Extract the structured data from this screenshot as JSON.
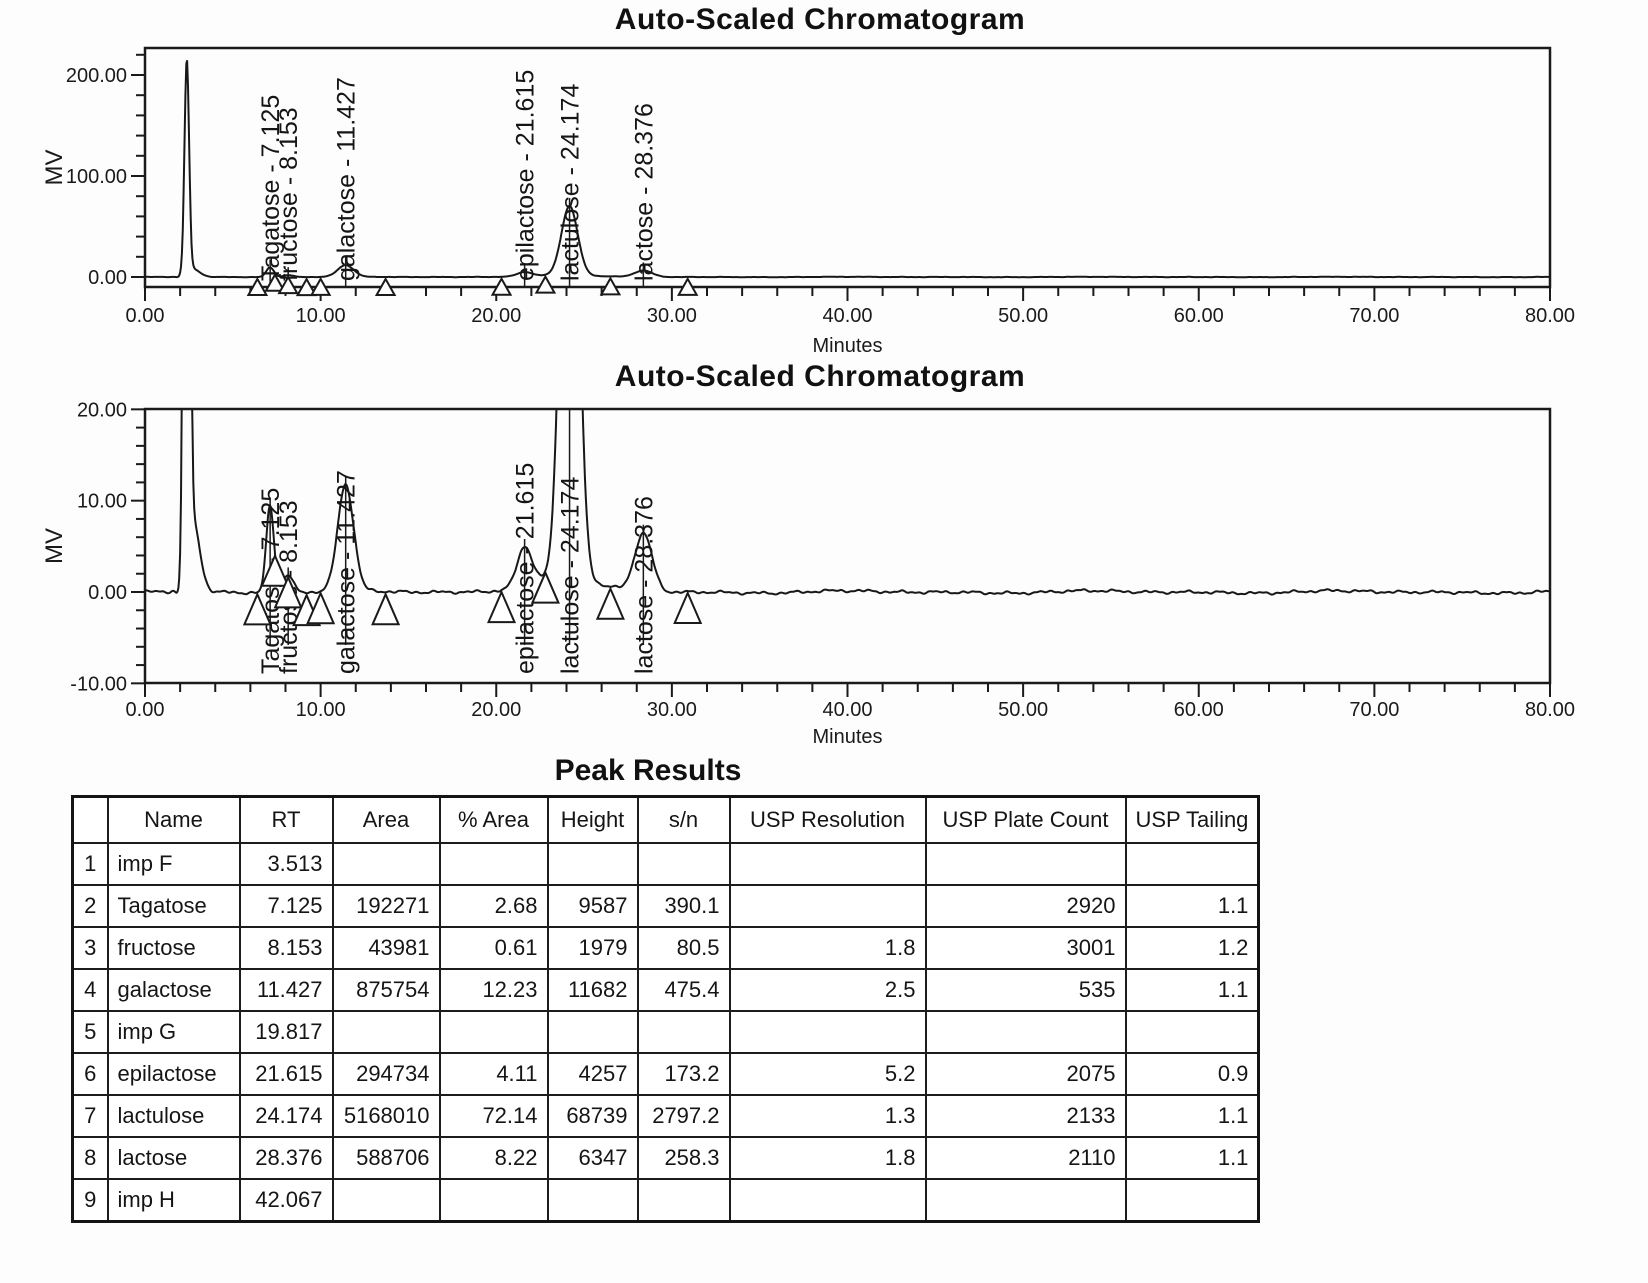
{
  "titles": {
    "chromatogram": "Auto-Scaled Chromatogram",
    "peak_results": "Peak Results"
  },
  "chart_data": {
    "type": "line",
    "x": {
      "label": "Minutes",
      "lim": [
        0,
        80
      ],
      "major_tick": 10,
      "minor_tick": 2,
      "tick_labels": [
        "0.00",
        "10.00",
        "20.00",
        "30.00",
        "40.00",
        "50.00",
        "60.00",
        "70.00",
        "80.00"
      ]
    },
    "charts": [
      {
        "title": "Auto-Scaled Chromatogram",
        "ylabel": "MV",
        "ylim": [
          -10.4,
          226.7
        ],
        "y_major_ticks": [
          0,
          100,
          200
        ],
        "y_tick_labels": [
          "0.00",
          "100.00",
          "200.00"
        ],
        "y_minor_step": 20,
        "grid": false,
        "legend": false
      },
      {
        "title": "Auto-Scaled Chromatogram",
        "ylabel": "MV",
        "ylim": [
          -10,
          20
        ],
        "y_major_ticks": [
          -10,
          0,
          10,
          20
        ],
        "y_tick_labels": [
          "-10.00",
          "0.00",
          "10.00",
          "20.00"
        ],
        "y_minor_step": 2,
        "grid": false,
        "legend": false
      }
    ],
    "peaks": [
      {
        "name": "solvent-front",
        "rt_min": 2.38,
        "height_mv": 210.0,
        "sigma_min": 0.13,
        "labeled": false
      },
      {
        "name": "solvent-tail",
        "rt_min": 2.66,
        "height_mv": 8.5,
        "sigma_min": 0.42,
        "labeled": false
      },
      {
        "name": "pre-peak-dip",
        "rt_min": 1.92,
        "height_mv": -1.4,
        "sigma_min": 0.16,
        "labeled": false
      },
      {
        "name": "Tagatose",
        "rt_min": 7.125,
        "height_mv": 9.587,
        "sigma_min": 0.22,
        "labeled": true
      },
      {
        "name": "fructose",
        "rt_min": 8.153,
        "height_mv": 1.979,
        "sigma_min": 0.28,
        "labeled": true
      },
      {
        "name": "galactose",
        "rt_min": 11.427,
        "height_mv": 11.682,
        "sigma_min": 0.45,
        "labeled": true
      },
      {
        "name": "epilactose",
        "rt_min": 21.615,
        "height_mv": 4.257,
        "sigma_min": 0.42,
        "labeled": true
      },
      {
        "name": "lactulose-front",
        "rt_min": 23.6,
        "height_mv": 1.6,
        "sigma_min": 1.8,
        "labeled": false
      },
      {
        "name": "lactulose",
        "rt_min": 24.174,
        "height_mv": 68.739,
        "sigma_min": 0.46,
        "labeled": true
      },
      {
        "name": "lactose",
        "rt_min": 28.376,
        "height_mv": 6.347,
        "sigma_min": 0.5,
        "labeled": true
      }
    ],
    "integration_marks_min": [
      6.4,
      7.4,
      8.15,
      9.2,
      10.0,
      13.7,
      20.3,
      22.8,
      26.5,
      30.9
    ]
  },
  "peak_results": {
    "title": "Peak Results",
    "headers": [
      "",
      "Name",
      "RT",
      "Area",
      "% Area",
      "Height",
      "s/n",
      "USP Resolution",
      "USP Plate Count",
      "USP Tailing"
    ],
    "rows": [
      [
        "1",
        "imp F",
        "3.513",
        "",
        "",
        "",
        "",
        "",
        "",
        ""
      ],
      [
        "2",
        "Tagatose",
        "7.125",
        "192271",
        "2.68",
        "9587",
        "390.1",
        "",
        "2920",
        "1.1"
      ],
      [
        "3",
        "fructose",
        "8.153",
        "43981",
        "0.61",
        "1979",
        "80.5",
        "1.8",
        "3001",
        "1.2"
      ],
      [
        "4",
        "galactose",
        "11.427",
        "875754",
        "12.23",
        "11682",
        "475.4",
        "2.5",
        "535",
        "1.1"
      ],
      [
        "5",
        "imp G",
        "19.817",
        "",
        "",
        "",
        "",
        "",
        "",
        ""
      ],
      [
        "6",
        "epilactose",
        "21.615",
        "294734",
        "4.11",
        "4257",
        "173.2",
        "5.2",
        "2075",
        "0.9"
      ],
      [
        "7",
        "lactulose",
        "24.174",
        "5168010",
        "72.14",
        "68739",
        "2797.2",
        "1.3",
        "2133",
        "1.1"
      ],
      [
        "8",
        "lactose",
        "28.376",
        "588706",
        "8.22",
        "6347",
        "258.3",
        "1.8",
        "2110",
        "1.1"
      ],
      [
        "9",
        "imp H",
        "42.067",
        "",
        "",
        "",
        "",
        "",
        "",
        ""
      ]
    ]
  }
}
